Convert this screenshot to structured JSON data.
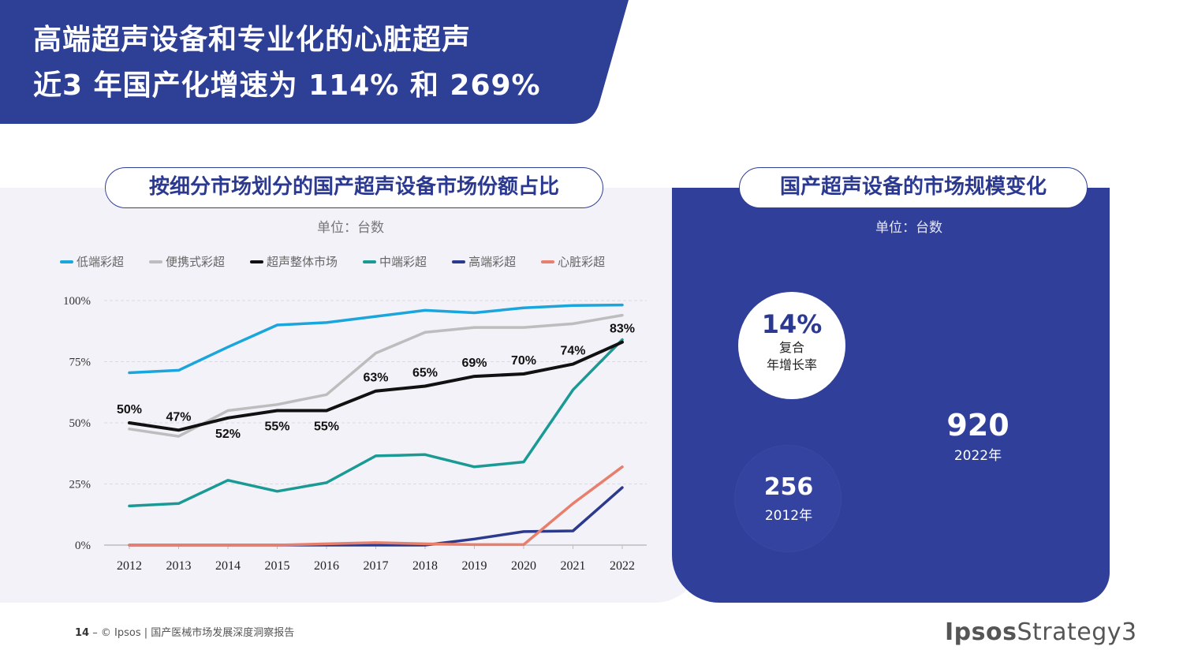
{
  "header": {
    "title_line1": "高端超声设备和专业化的心脏超声",
    "title_line2": "近3 年国产化增速为 114% 和 269%",
    "banner_color": "#2e3f96"
  },
  "left_panel": {
    "title": "按细分市场划分的国产超声设备市场份额占比",
    "unit": "单位：台数"
  },
  "right_panel": {
    "title": "国产超声设备的市场规模变化",
    "unit": "单位：台数",
    "cagr_value": "14%",
    "cagr_label_line1": "复合",
    "cagr_label_line2": "年增长率",
    "value_2012": "256",
    "label_2012": "2012年",
    "value_2022": "920",
    "label_2022": "2022年"
  },
  "chart_data": {
    "type": "line",
    "x": [
      "2012",
      "2013",
      "2014",
      "2015",
      "2016",
      "2017",
      "2018",
      "2019",
      "2020",
      "2021",
      "2022"
    ],
    "yticks": [
      "0%",
      "25%",
      "50%",
      "75%",
      "100%"
    ],
    "ylim": [
      0,
      100
    ],
    "grid": true,
    "legend_position": "top",
    "series": [
      {
        "name": "低端彩超",
        "color": "#1aa6dc",
        "values": [
          70.5,
          71.5,
          81,
          90,
          91,
          93.5,
          96,
          95,
          97,
          98,
          98.2
        ]
      },
      {
        "name": "便携式彩超",
        "color": "#bdbdbd",
        "values": [
          47.5,
          44.5,
          55,
          57.5,
          61.5,
          78.5,
          87,
          89,
          89,
          90.5,
          94
        ]
      },
      {
        "name": "超声整体市场",
        "color": "#111111",
        "values": [
          50,
          47,
          52,
          55,
          55,
          63,
          65,
          69,
          70,
          74,
          83
        ],
        "labels": [
          "50%",
          "47%",
          "52%",
          "55%",
          "55%",
          "63%",
          "65%",
          "69%",
          "70%",
          "74%",
          "83%"
        ]
      },
      {
        "name": "中端彩超",
        "color": "#1a9a94",
        "values": [
          16,
          17,
          26.5,
          22,
          25.5,
          36.5,
          37,
          32,
          34,
          63.5,
          84
        ]
      },
      {
        "name": "高端彩超",
        "color": "#2b3a8c",
        "values": [
          0,
          0,
          0,
          0,
          0,
          0,
          0,
          2.5,
          5.5,
          5.8,
          23.5
        ]
      },
      {
        "name": "心脏彩超",
        "color": "#e77f6c",
        "values": [
          0,
          0,
          0,
          0,
          0.5,
          1,
          0.5,
          0.2,
          0.2,
          17,
          32
        ]
      }
    ]
  },
  "footer": {
    "page": "14",
    "dash": "–",
    "text": "© Ipsos | 国产医械市场发展深度洞察报告"
  },
  "logo": {
    "brand": "Ipsos",
    "suffix": "Strategy3"
  }
}
